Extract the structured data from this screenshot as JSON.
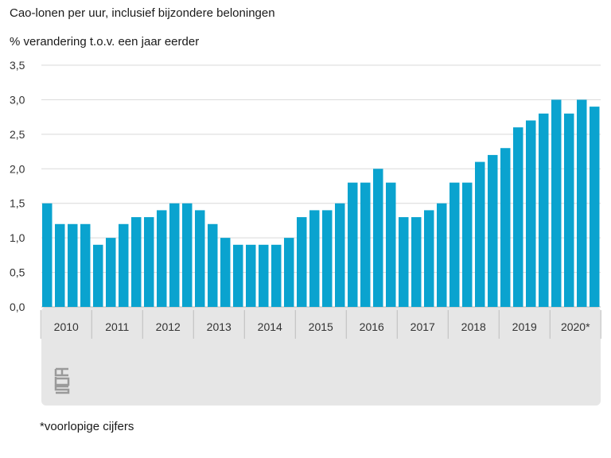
{
  "title": "Cao-lonen per uur, inclusief bijzondere beloningen",
  "subtitle": "% verandering t.o.v. een jaar eerder",
  "footnote": "*voorlopige cijfers",
  "logo": "cbs-logo",
  "colors": {
    "bar": "#0aa3cf",
    "axis_band": "#e6e6e6",
    "grid": "#d9d9d9",
    "text": "#333333"
  },
  "chart_data": {
    "type": "bar",
    "title": "Cao-lonen per uur, inclusief bijzondere beloningen",
    "ylabel": "% verandering t.o.v. een jaar eerder",
    "xlabel": "",
    "ylim": [
      0,
      3.5
    ],
    "yticks": [
      "0,0",
      "0,5",
      "1,0",
      "1,5",
      "2,0",
      "2,5",
      "3,0",
      "3,5"
    ],
    "ytick_values": [
      0,
      0.5,
      1.0,
      1.5,
      2.0,
      2.5,
      3.0,
      3.5
    ],
    "grid": true,
    "years": [
      "2010",
      "2011",
      "2012",
      "2013",
      "2014",
      "2015",
      "2016",
      "2017",
      "2018",
      "2019",
      "2020*"
    ],
    "quarters_per_year": 4,
    "values": [
      1.5,
      1.2,
      1.2,
      1.2,
      0.9,
      1.0,
      1.2,
      1.3,
      1.3,
      1.4,
      1.5,
      1.5,
      1.4,
      1.2,
      1.0,
      0.9,
      0.9,
      0.9,
      0.9,
      1.0,
      1.3,
      1.4,
      1.4,
      1.5,
      1.8,
      1.8,
      2.0,
      1.8,
      1.3,
      1.3,
      1.4,
      1.5,
      1.8,
      1.8,
      2.1,
      2.2,
      2.3,
      2.6,
      2.7,
      2.8,
      3.0,
      2.8,
      3.0,
      2.9
    ]
  }
}
